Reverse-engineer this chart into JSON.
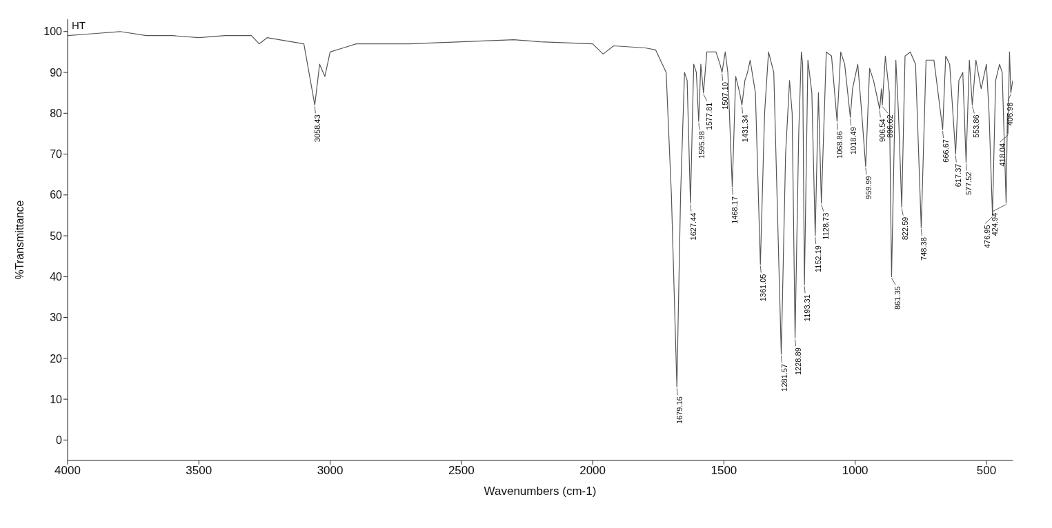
{
  "chart_data": {
    "type": "line",
    "xlabel": "Wavenumbers (cm-1)",
    "ylabel": "%Transmittance",
    "xlim": [
      4000,
      400
    ],
    "xticks": [
      4000,
      3500,
      3000,
      2500,
      2000,
      1500,
      1000,
      500
    ],
    "ylim": [
      -5,
      103
    ],
    "yticks": [
      0,
      10,
      20,
      30,
      40,
      50,
      60,
      70,
      80,
      90,
      100
    ],
    "marker": "none",
    "line_style": "solid",
    "series": [
      {
        "color": "#555555",
        "x": [
          4000,
          3900,
          3800,
          3700,
          3600,
          3500,
          3400,
          3300,
          3270,
          3240,
          3100,
          3058.43,
          3040,
          3020,
          3000,
          2950,
          2900,
          2700,
          2500,
          2300,
          2200,
          2000,
          1960,
          1920,
          1800,
          1760,
          1720,
          1700,
          1679.16,
          1665,
          1650,
          1640,
          1627.44,
          1615,
          1605,
          1595.98,
          1588,
          1577.81,
          1565,
          1530,
          1515,
          1507.1,
          1495,
          1485,
          1468.17,
          1455,
          1440,
          1431.34,
          1420,
          1410,
          1400,
          1380,
          1361.05,
          1345,
          1330,
          1310,
          1281.57,
          1265,
          1250,
          1240,
          1228.89,
          1215,
          1205,
          1200,
          1193.31,
          1180,
          1165,
          1152.19,
          1140,
          1128.73,
          1110,
          1090,
          1068.86,
          1055,
          1040,
          1030,
          1018.49,
          1010,
          990,
          975,
          959.99,
          945,
          930,
          906.54,
          900,
          896.62,
          885,
          870,
          861.35,
          845,
          835,
          822.59,
          810,
          790,
          770,
          748.38,
          730,
          700,
          690,
          666.67,
          655,
          640,
          617.37,
          605,
          590,
          577.52,
          565,
          553.86,
          540,
          520,
          500,
          490,
          476.95,
          465,
          450,
          440,
          424.94,
          420,
          418.04,
          412,
          406.98,
          400
        ],
        "values": [
          99,
          99.5,
          100,
          99,
          99,
          98.5,
          99,
          99,
          97,
          98.5,
          97,
          82,
          92,
          89,
          95,
          96,
          97,
          97,
          97.5,
          98,
          97.5,
          97,
          94.5,
          96.5,
          96,
          95.5,
          90,
          60,
          13,
          60,
          90,
          88,
          58,
          92,
          90,
          78,
          92,
          85,
          95,
          95,
          92,
          90,
          95,
          90,
          62,
          89,
          85,
          82,
          88,
          90,
          93,
          85,
          43,
          80,
          95,
          90,
          21,
          70,
          88,
          80,
          25,
          75,
          95,
          92,
          38,
          93,
          85,
          50,
          85,
          58,
          95,
          94,
          78,
          95,
          92,
          86,
          79,
          86,
          92,
          80,
          67,
          91,
          88,
          81,
          86,
          82,
          94,
          85,
          40,
          93,
          80,
          57,
          94,
          95,
          92,
          52,
          93,
          93,
          88,
          76,
          94,
          92,
          70,
          88,
          90,
          68,
          93,
          82,
          93,
          86,
          92,
          80,
          55,
          88,
          92,
          90,
          58,
          80,
          75,
          95,
          85,
          88
        ]
      }
    ],
    "annotations": [
      "HT",
      {
        "text": "3058.43",
        "x": 3058.43,
        "y": 82
      },
      {
        "text": "1679.16",
        "x": 1679.16,
        "y": 13
      },
      {
        "text": "1627.44",
        "x": 1627.44,
        "y": 58
      },
      {
        "text": "1595.98",
        "x": 1595.98,
        "y": 78
      },
      {
        "text": "1577.81",
        "x": 1577.81,
        "y": 85
      },
      {
        "text": "1507.10",
        "x": 1507.1,
        "y": 90
      },
      {
        "text": "1468.17",
        "x": 1468.17,
        "y": 62
      },
      {
        "text": "1431.34",
        "x": 1431.34,
        "y": 82
      },
      {
        "text": "1361.05",
        "x": 1361.05,
        "y": 43
      },
      {
        "text": "1281.57",
        "x": 1281.57,
        "y": 21
      },
      {
        "text": "1228.89",
        "x": 1228.89,
        "y": 25
      },
      {
        "text": "1193.31",
        "x": 1193.31,
        "y": 38
      },
      {
        "text": "1152.19",
        "x": 1152.19,
        "y": 50
      },
      {
        "text": "1128.73",
        "x": 1128.73,
        "y": 58
      },
      {
        "text": "1068.86",
        "x": 1068.86,
        "y": 78
      },
      {
        "text": "1018.49",
        "x": 1018.49,
        "y": 79
      },
      {
        "text": "959.99",
        "x": 959.99,
        "y": 67
      },
      {
        "text": "906.54",
        "x": 906.54,
        "y": 81
      },
      {
        "text": "896.62",
        "x": 896.62,
        "y": 82
      },
      {
        "text": "861.35",
        "x": 861.35,
        "y": 40
      },
      {
        "text": "822.59",
        "x": 822.59,
        "y": 57
      },
      {
        "text": "748.38",
        "x": 748.38,
        "y": 52
      },
      {
        "text": "666.67",
        "x": 666.67,
        "y": 76
      },
      {
        "text": "617.37",
        "x": 617.37,
        "y": 70
      },
      {
        "text": "577.52",
        "x": 577.52,
        "y": 68
      },
      {
        "text": "553.86",
        "x": 553.86,
        "y": 82
      },
      {
        "text": "476.95",
        "x": 476.95,
        "y": 55
      },
      {
        "text": "424.94",
        "x": 424.94,
        "y": 58
      },
      {
        "text": "418.04",
        "x": 418.04,
        "y": 75
      },
      {
        "text": "406.98",
        "x": 406.98,
        "y": 85
      }
    ]
  }
}
